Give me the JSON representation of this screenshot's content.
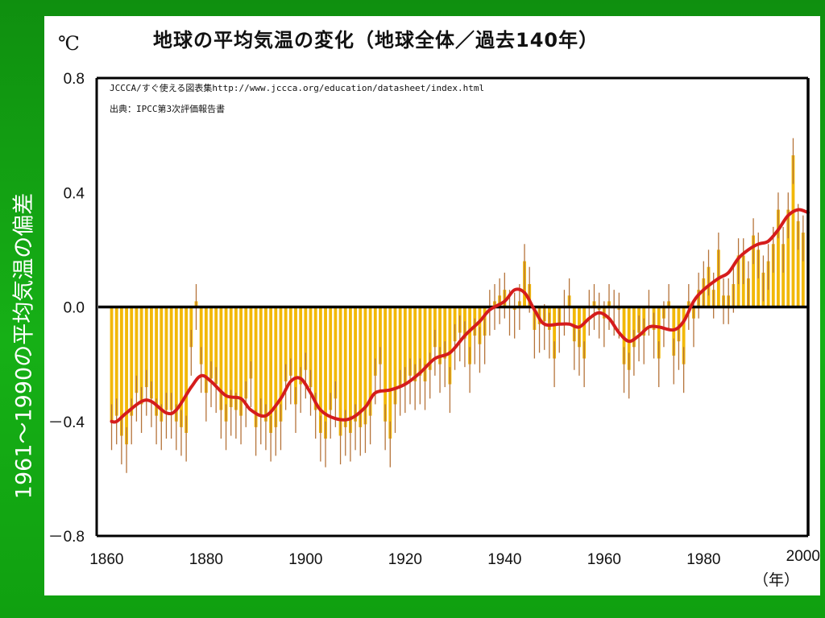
{
  "title": "地球の平均気温の変化（地球全体／過去140年）",
  "side_label": "1961～1990の平均気温の偏差",
  "unit_label": "℃",
  "x_unit_label": "（年）",
  "notes": [
    "JCCCA/すぐ使える図表集http://www.jccca.org/education/datasheet/index.html",
    "出典：IPCC第3次評価報告書"
  ],
  "colors": {
    "background": "#13a813",
    "bars": "#f2b807",
    "error_bars": "#b5733a",
    "smooth_line": "#d51c1c",
    "zero_line": "#000000"
  },
  "chart_data": {
    "type": "bar",
    "title": "地球の平均気温の変化（地球全体／過去140年）",
    "ylabel": "1961～1990の平均気温の偏差",
    "yunit": "℃",
    "xlabel": "（年）",
    "xlim": [
      1858,
      2001
    ],
    "ylim": [
      -0.8,
      0.8
    ],
    "x_ticks": [
      1860,
      1880,
      1900,
      1920,
      1940,
      1960,
      1980,
      2000
    ],
    "y_ticks": [
      {
        "value": 0.8,
        "label": "0.8"
      },
      {
        "value": 0.4,
        "label": "0.4"
      },
      {
        "value": 0.0,
        "label": "0.0"
      },
      {
        "value": -0.4,
        "label": "－0.4"
      },
      {
        "value": -0.8,
        "label": "－0.8"
      }
    ],
    "years": [
      1861,
      1862,
      1863,
      1864,
      1865,
      1866,
      1867,
      1868,
      1869,
      1870,
      1871,
      1872,
      1873,
      1874,
      1875,
      1876,
      1877,
      1878,
      1879,
      1880,
      1881,
      1882,
      1883,
      1884,
      1885,
      1886,
      1887,
      1888,
      1889,
      1890,
      1891,
      1892,
      1893,
      1894,
      1895,
      1896,
      1897,
      1898,
      1899,
      1900,
      1901,
      1902,
      1903,
      1904,
      1905,
      1906,
      1907,
      1908,
      1909,
      1910,
      1911,
      1912,
      1913,
      1914,
      1915,
      1916,
      1917,
      1918,
      1919,
      1920,
      1921,
      1922,
      1923,
      1924,
      1925,
      1926,
      1927,
      1928,
      1929,
      1930,
      1931,
      1932,
      1933,
      1934,
      1935,
      1936,
      1937,
      1938,
      1939,
      1940,
      1941,
      1942,
      1943,
      1944,
      1945,
      1946,
      1947,
      1948,
      1949,
      1950,
      1951,
      1952,
      1953,
      1954,
      1955,
      1956,
      1957,
      1958,
      1959,
      1960,
      1961,
      1962,
      1963,
      1964,
      1965,
      1966,
      1967,
      1968,
      1969,
      1970,
      1971,
      1972,
      1973,
      1974,
      1975,
      1976,
      1977,
      1978,
      1979,
      1980,
      1981,
      1982,
      1983,
      1984,
      1985,
      1986,
      1987,
      1988,
      1989,
      1990,
      1991,
      1992,
      1993,
      1994,
      1995,
      1996,
      1997,
      1998,
      1999,
      2000
    ],
    "anomalies": [
      -0.4,
      -0.38,
      -0.45,
      -0.48,
      -0.38,
      -0.3,
      -0.34,
      -0.28,
      -0.32,
      -0.38,
      -0.4,
      -0.36,
      -0.36,
      -0.4,
      -0.42,
      -0.44,
      -0.14,
      0.02,
      -0.2,
      -0.3,
      -0.25,
      -0.27,
      -0.36,
      -0.4,
      -0.35,
      -0.36,
      -0.38,
      -0.32,
      -0.25,
      -0.42,
      -0.38,
      -0.4,
      -0.44,
      -0.42,
      -0.4,
      -0.26,
      -0.24,
      -0.34,
      -0.27,
      -0.22,
      -0.28,
      -0.36,
      -0.44,
      -0.46,
      -0.36,
      -0.32,
      -0.45,
      -0.42,
      -0.44,
      -0.4,
      -0.42,
      -0.41,
      -0.38,
      -0.24,
      -0.2,
      -0.4,
      -0.46,
      -0.34,
      -0.28,
      -0.27,
      -0.24,
      -0.26,
      -0.24,
      -0.26,
      -0.22,
      -0.14,
      -0.2,
      -0.18,
      -0.27,
      -0.12,
      -0.09,
      -0.11,
      -0.2,
      -0.1,
      -0.13,
      -0.1,
      0.0,
      0.02,
      0.04,
      0.06,
      0.0,
      -0.01,
      0.02,
      0.16,
      0.08,
      -0.08,
      -0.06,
      -0.05,
      -0.08,
      -0.18,
      -0.06,
      0.0,
      0.04,
      -0.12,
      -0.14,
      -0.18,
      0.0,
      0.02,
      -0.01,
      -0.04,
      0.02,
      0.0,
      -0.01,
      -0.2,
      -0.22,
      -0.14,
      -0.09,
      -0.1,
      0.0,
      -0.08,
      -0.18,
      -0.04,
      0.02,
      -0.17,
      -0.12,
      -0.2,
      0.02,
      -0.04,
      0.06,
      0.1,
      0.14,
      0.06,
      0.2,
      0.04,
      0.04,
      0.08,
      0.18,
      0.18,
      0.1,
      0.25,
      0.2,
      0.12,
      0.16,
      0.22,
      0.34,
      0.22,
      0.34,
      0.53,
      0.3,
      0.26
    ],
    "error_bars": {
      "lower": -0.1,
      "upper": 0.06
    },
    "smoothed": [
      {
        "year": 1861,
        "value": -0.4
      },
      {
        "year": 1862,
        "value": -0.4
      },
      {
        "year": 1864,
        "value": -0.37
      },
      {
        "year": 1867,
        "value": -0.33
      },
      {
        "year": 1869,
        "value": -0.33
      },
      {
        "year": 1872,
        "value": -0.37
      },
      {
        "year": 1874,
        "value": -0.36
      },
      {
        "year": 1877,
        "value": -0.28
      },
      {
        "year": 1879,
        "value": -0.24
      },
      {
        "year": 1881,
        "value": -0.26
      },
      {
        "year": 1884,
        "value": -0.31
      },
      {
        "year": 1887,
        "value": -0.32
      },
      {
        "year": 1889,
        "value": -0.36
      },
      {
        "year": 1892,
        "value": -0.38
      },
      {
        "year": 1895,
        "value": -0.32
      },
      {
        "year": 1897,
        "value": -0.26
      },
      {
        "year": 1899,
        "value": -0.25
      },
      {
        "year": 1901,
        "value": -0.3
      },
      {
        "year": 1903,
        "value": -0.36
      },
      {
        "year": 1906,
        "value": -0.39
      },
      {
        "year": 1909,
        "value": -0.39
      },
      {
        "year": 1912,
        "value": -0.35
      },
      {
        "year": 1914,
        "value": -0.3
      },
      {
        "year": 1917,
        "value": -0.29
      },
      {
        "year": 1920,
        "value": -0.27
      },
      {
        "year": 1923,
        "value": -0.23
      },
      {
        "year": 1926,
        "value": -0.18
      },
      {
        "year": 1929,
        "value": -0.16
      },
      {
        "year": 1932,
        "value": -0.1
      },
      {
        "year": 1935,
        "value": -0.05
      },
      {
        "year": 1937,
        "value": -0.01
      },
      {
        "year": 1940,
        "value": 0.02
      },
      {
        "year": 1942,
        "value": 0.06
      },
      {
        "year": 1944,
        "value": 0.05
      },
      {
        "year": 1946,
        "value": -0.01
      },
      {
        "year": 1948,
        "value": -0.06
      },
      {
        "year": 1951,
        "value": -0.06
      },
      {
        "year": 1953,
        "value": -0.06
      },
      {
        "year": 1955,
        "value": -0.07
      },
      {
        "year": 1957,
        "value": -0.04
      },
      {
        "year": 1959,
        "value": -0.02
      },
      {
        "year": 1961,
        "value": -0.04
      },
      {
        "year": 1963,
        "value": -0.09
      },
      {
        "year": 1965,
        "value": -0.12
      },
      {
        "year": 1967,
        "value": -0.1
      },
      {
        "year": 1969,
        "value": -0.07
      },
      {
        "year": 1971,
        "value": -0.07
      },
      {
        "year": 1974,
        "value": -0.08
      },
      {
        "year": 1976,
        "value": -0.05
      },
      {
        "year": 1978,
        "value": 0.02
      },
      {
        "year": 1980,
        "value": 0.06
      },
      {
        "year": 1983,
        "value": 0.1
      },
      {
        "year": 1985,
        "value": 0.12
      },
      {
        "year": 1987,
        "value": 0.17
      },
      {
        "year": 1989,
        "value": 0.2
      },
      {
        "year": 1991,
        "value": 0.22
      },
      {
        "year": 1993,
        "value": 0.23
      },
      {
        "year": 1995,
        "value": 0.27
      },
      {
        "year": 1997,
        "value": 0.32
      },
      {
        "year": 1999,
        "value": 0.34
      },
      {
        "year": 2001,
        "value": 0.33
      }
    ],
    "grid": false,
    "legend": "none"
  }
}
